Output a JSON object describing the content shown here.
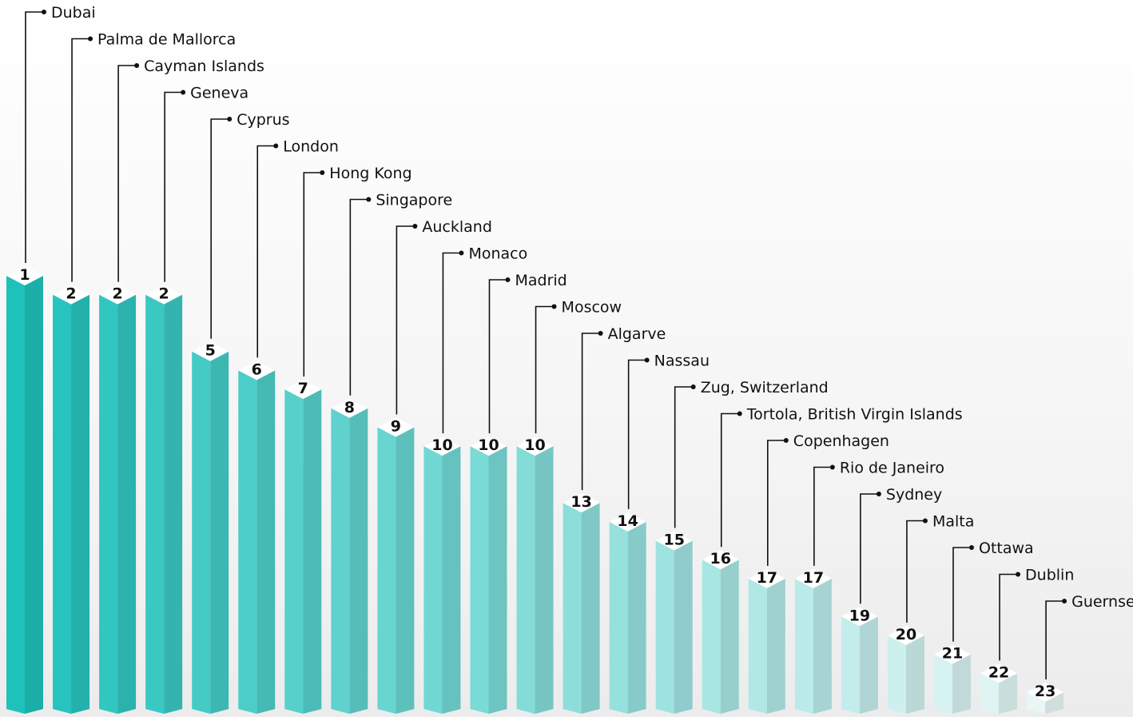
{
  "chart_data": {
    "type": "bar",
    "title": "",
    "xlabel": "",
    "ylabel": "",
    "categories": [
      "Dubai",
      "Palma de Mallorca",
      "Cayman Islands",
      "Geneva",
      "Cyprus",
      "London",
      "Hong Kong",
      "Singapore",
      "Auckland",
      "Monaco",
      "Madrid",
      "Moscow",
      "Algarve",
      "Nassau",
      "Zug, Switzerland",
      "Tortola, British Virgin Islands",
      "Copenhagen",
      "Rio de Janeiro",
      "Sydney",
      "Malta",
      "Ottawa",
      "Dublin",
      "Guernsey"
    ],
    "values": [
      1,
      2,
      2,
      2,
      5,
      6,
      7,
      8,
      9,
      10,
      10,
      10,
      13,
      14,
      15,
      16,
      17,
      17,
      19,
      20,
      21,
      22,
      23
    ],
    "colors": {
      "top": "#1fc1bb",
      "bottom": "#e8f7f6",
      "leader": "#111111"
    },
    "grid": false,
    "legend": "none"
  }
}
